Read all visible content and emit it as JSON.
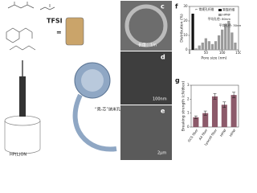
{
  "figure": {
    "panels": [
      "c",
      "d",
      "e",
      "f",
      "g"
    ],
    "tfsi": "TFSI",
    "equals": "=",
    "solution": "HP(L)ON",
    "fiber_label": "“壳-芯”纳米孔纤维",
    "scale_c": "长度：1m",
    "scale_d": "100nm",
    "scale_e": "2μm"
  },
  "chart_data": [
    {
      "type": "bar",
      "x_label": "Pore size (nm)",
      "y_label": "Distribution (%)",
      "annotations": [
        "← 常规孔纤维",
        "平均孔径: 80nm",
        "平均孔径: 30nm"
      ],
      "x": [
        10,
        20,
        30,
        40,
        50,
        60,
        70,
        80,
        90,
        100,
        110,
        120,
        130,
        140
      ],
      "series": [
        {
          "name": "常规纤维",
          "color": "#111111",
          "values": [
            25,
            null,
            null,
            null,
            null,
            null,
            null,
            null,
            null,
            null,
            null,
            null,
            null,
            null
          ]
        },
        {
          "name": "HPNF",
          "color": "#9a9a9a",
          "values": [
            null,
            1,
            3,
            5,
            8,
            6,
            4,
            6,
            10,
            14,
            18,
            20,
            12,
            5
          ]
        }
      ],
      "xlim": [
        0,
        150
      ],
      "xticks": [
        0,
        50,
        100,
        150
      ],
      "ylim": [
        0,
        30
      ],
      "yticks": [
        0,
        10,
        20,
        30
      ],
      "legend": "upper right"
    },
    {
      "type": "bar",
      "y_label": "Breaking strength (cN/dtex)",
      "categories": [
        "GCS fiber",
        "A4 fiber",
        "Lyocell fiber",
        "HPNF",
        "HPNF"
      ],
      "values": [
        0.7,
        1.0,
        2.2,
        1.6,
        2.3
      ],
      "errors": [
        0.1,
        0.15,
        0.2,
        0.2,
        0.2
      ],
      "color": "#8c5a6a",
      "ylim": [
        0,
        3
      ],
      "yticks": [
        0,
        1,
        2,
        3
      ]
    }
  ]
}
